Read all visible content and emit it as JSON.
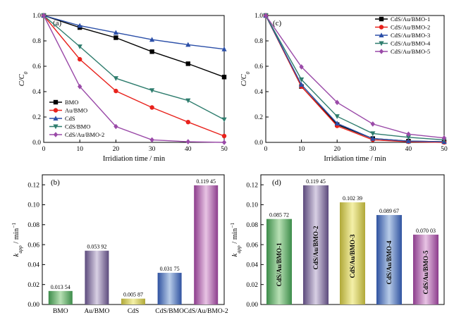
{
  "chart_data": [
    {
      "id": "a",
      "type": "line",
      "panel_label": "(a)",
      "xlabel": "Irridiation time / min",
      "ylabel_main": "C/C",
      "ylabel_sub": "0",
      "xlim": [
        0,
        50
      ],
      "ylim": [
        0,
        1.0
      ],
      "xticks": [
        "0",
        "10",
        "20",
        "30",
        "40",
        "50"
      ],
      "yticks": [
        "0.0",
        "0.2",
        "0.4",
        "0.6",
        "0.8",
        "1.0"
      ],
      "legend_position": "bottom-left",
      "x": [
        0,
        10,
        20,
        30,
        40,
        50
      ],
      "series": [
        {
          "name": "BMO",
          "color": "#000000",
          "marker": "square",
          "values": [
            1.0,
            0.905,
            0.825,
            0.715,
            0.62,
            0.515
          ]
        },
        {
          "name": "Au/BMO",
          "color": "#e8221c",
          "marker": "circle",
          "values": [
            1.0,
            0.655,
            0.405,
            0.275,
            0.16,
            0.05
          ]
        },
        {
          "name": "CdS",
          "color": "#2b4fa8",
          "marker": "triangle-up",
          "values": [
            1.0,
            0.92,
            0.865,
            0.81,
            0.77,
            0.735
          ]
        },
        {
          "name": "CdS/BMO",
          "color": "#2f7d6e",
          "marker": "triangle-down",
          "values": [
            1.0,
            0.755,
            0.505,
            0.41,
            0.33,
            0.18
          ]
        },
        {
          "name": "CdS/Au/BMO-2",
          "color": "#9a4aa8",
          "marker": "diamond",
          "values": [
            1.0,
            0.44,
            0.125,
            0.02,
            0.005,
            0.0
          ]
        }
      ]
    },
    {
      "id": "c",
      "type": "line",
      "panel_label": "(c)",
      "xlabel": "Irridiation time / min",
      "ylabel_main": "C/C",
      "ylabel_sub": "0",
      "xlim": [
        0,
        50
      ],
      "ylim": [
        0,
        1.0
      ],
      "xticks": [
        "0",
        "10",
        "20",
        "30",
        "40",
        "50"
      ],
      "yticks": [
        "0.0",
        "0.2",
        "0.4",
        "0.6",
        "0.8",
        "1.0"
      ],
      "legend_position": "top-right",
      "x": [
        0,
        10,
        20,
        30,
        40,
        50
      ],
      "series": [
        {
          "name": "CdS/Au/BMO-1",
          "color": "#000000",
          "marker": "square",
          "values": [
            1.0,
            0.44,
            0.14,
            0.03,
            0.01,
            0.005
          ]
        },
        {
          "name": "CdS/Au/BMO-2",
          "color": "#e8221c",
          "marker": "circle",
          "values": [
            1.0,
            0.44,
            0.13,
            0.02,
            0.005,
            0.0
          ]
        },
        {
          "name": "CdS/Au/BMO-3",
          "color": "#2b4fa8",
          "marker": "triangle-up",
          "values": [
            1.0,
            0.455,
            0.15,
            0.03,
            0.01,
            0.005
          ]
        },
        {
          "name": "CdS/Au/BMO-4",
          "color": "#2f7d6e",
          "marker": "triangle-down",
          "values": [
            1.0,
            0.495,
            0.205,
            0.07,
            0.04,
            0.02
          ]
        },
        {
          "name": "CdS/Au/BMO-5",
          "color": "#9a4aa8",
          "marker": "diamond",
          "values": [
            1.0,
            0.595,
            0.315,
            0.145,
            0.065,
            0.035
          ]
        }
      ]
    },
    {
      "id": "b",
      "type": "bar",
      "panel_label": "(b)",
      "ylabel_main": "k",
      "ylabel_sub": "app",
      "ylabel_unit": " / min",
      "ylabel_sup": "−1",
      "ylim": [
        0,
        0.13
      ],
      "yticks": [
        "0.00",
        "0.02",
        "0.04",
        "0.06",
        "0.08",
        "0.10",
        "0.12"
      ],
      "categories": [
        "BMO",
        "Au/BMO",
        "CdS",
        "CdS/BMO",
        "CdS/Au/BMO-2"
      ],
      "values": [
        0.01354,
        0.05392,
        0.00587,
        0.03175,
        0.11945
      ],
      "value_labels": [
        "0.013 54",
        "0.053 92",
        "0.005 87",
        "0.031 75",
        "0.119 45"
      ],
      "bar_colors": [
        [
          "#3c8c4a",
          "#b8e0b4",
          "#3c8c4a"
        ],
        [
          "#5c4a7c",
          "#d8d0e4",
          "#5c4a7c"
        ],
        [
          "#b0a838",
          "#f4f0a8",
          "#b0a838"
        ],
        [
          "#2f52a0",
          "#b8cce8",
          "#2f52a0"
        ],
        [
          "#8c3c8c",
          "#e8c4e4",
          "#8c3c8c"
        ]
      ]
    },
    {
      "id": "d",
      "type": "bar",
      "panel_label": "(d)",
      "ylabel_main": "k",
      "ylabel_sub": "app",
      "ylabel_unit": " / min",
      "ylabel_sup": "−1",
      "ylim": [
        0,
        0.13
      ],
      "yticks": [
        "0.00",
        "0.02",
        "0.04",
        "0.06",
        "0.08",
        "0.10",
        "0.12"
      ],
      "categories": [
        "CdS/Au/BMO-1",
        "CdS/Au/BMO-2",
        "CdS/Au/BMO-3",
        "CdS/Au/BMO-4",
        "CdS/Au/BMO-5"
      ],
      "values": [
        0.08572,
        0.11945,
        0.10239,
        0.08967,
        0.07003
      ],
      "value_labels": [
        "0.085 72",
        "0.119 45",
        "0.102 39",
        "0.089 67",
        "0.070 03"
      ],
      "bar_colors": [
        [
          "#3c8c4a",
          "#b8e0b4",
          "#3c8c4a"
        ],
        [
          "#5c4a7c",
          "#d8d0e4",
          "#5c4a7c"
        ],
        [
          "#b0a838",
          "#f4f0a8",
          "#b0a838"
        ],
        [
          "#2f52a0",
          "#b8cce8",
          "#2f52a0"
        ],
        [
          "#8c3c8c",
          "#e8c4e4",
          "#8c3c8c"
        ]
      ]
    }
  ]
}
